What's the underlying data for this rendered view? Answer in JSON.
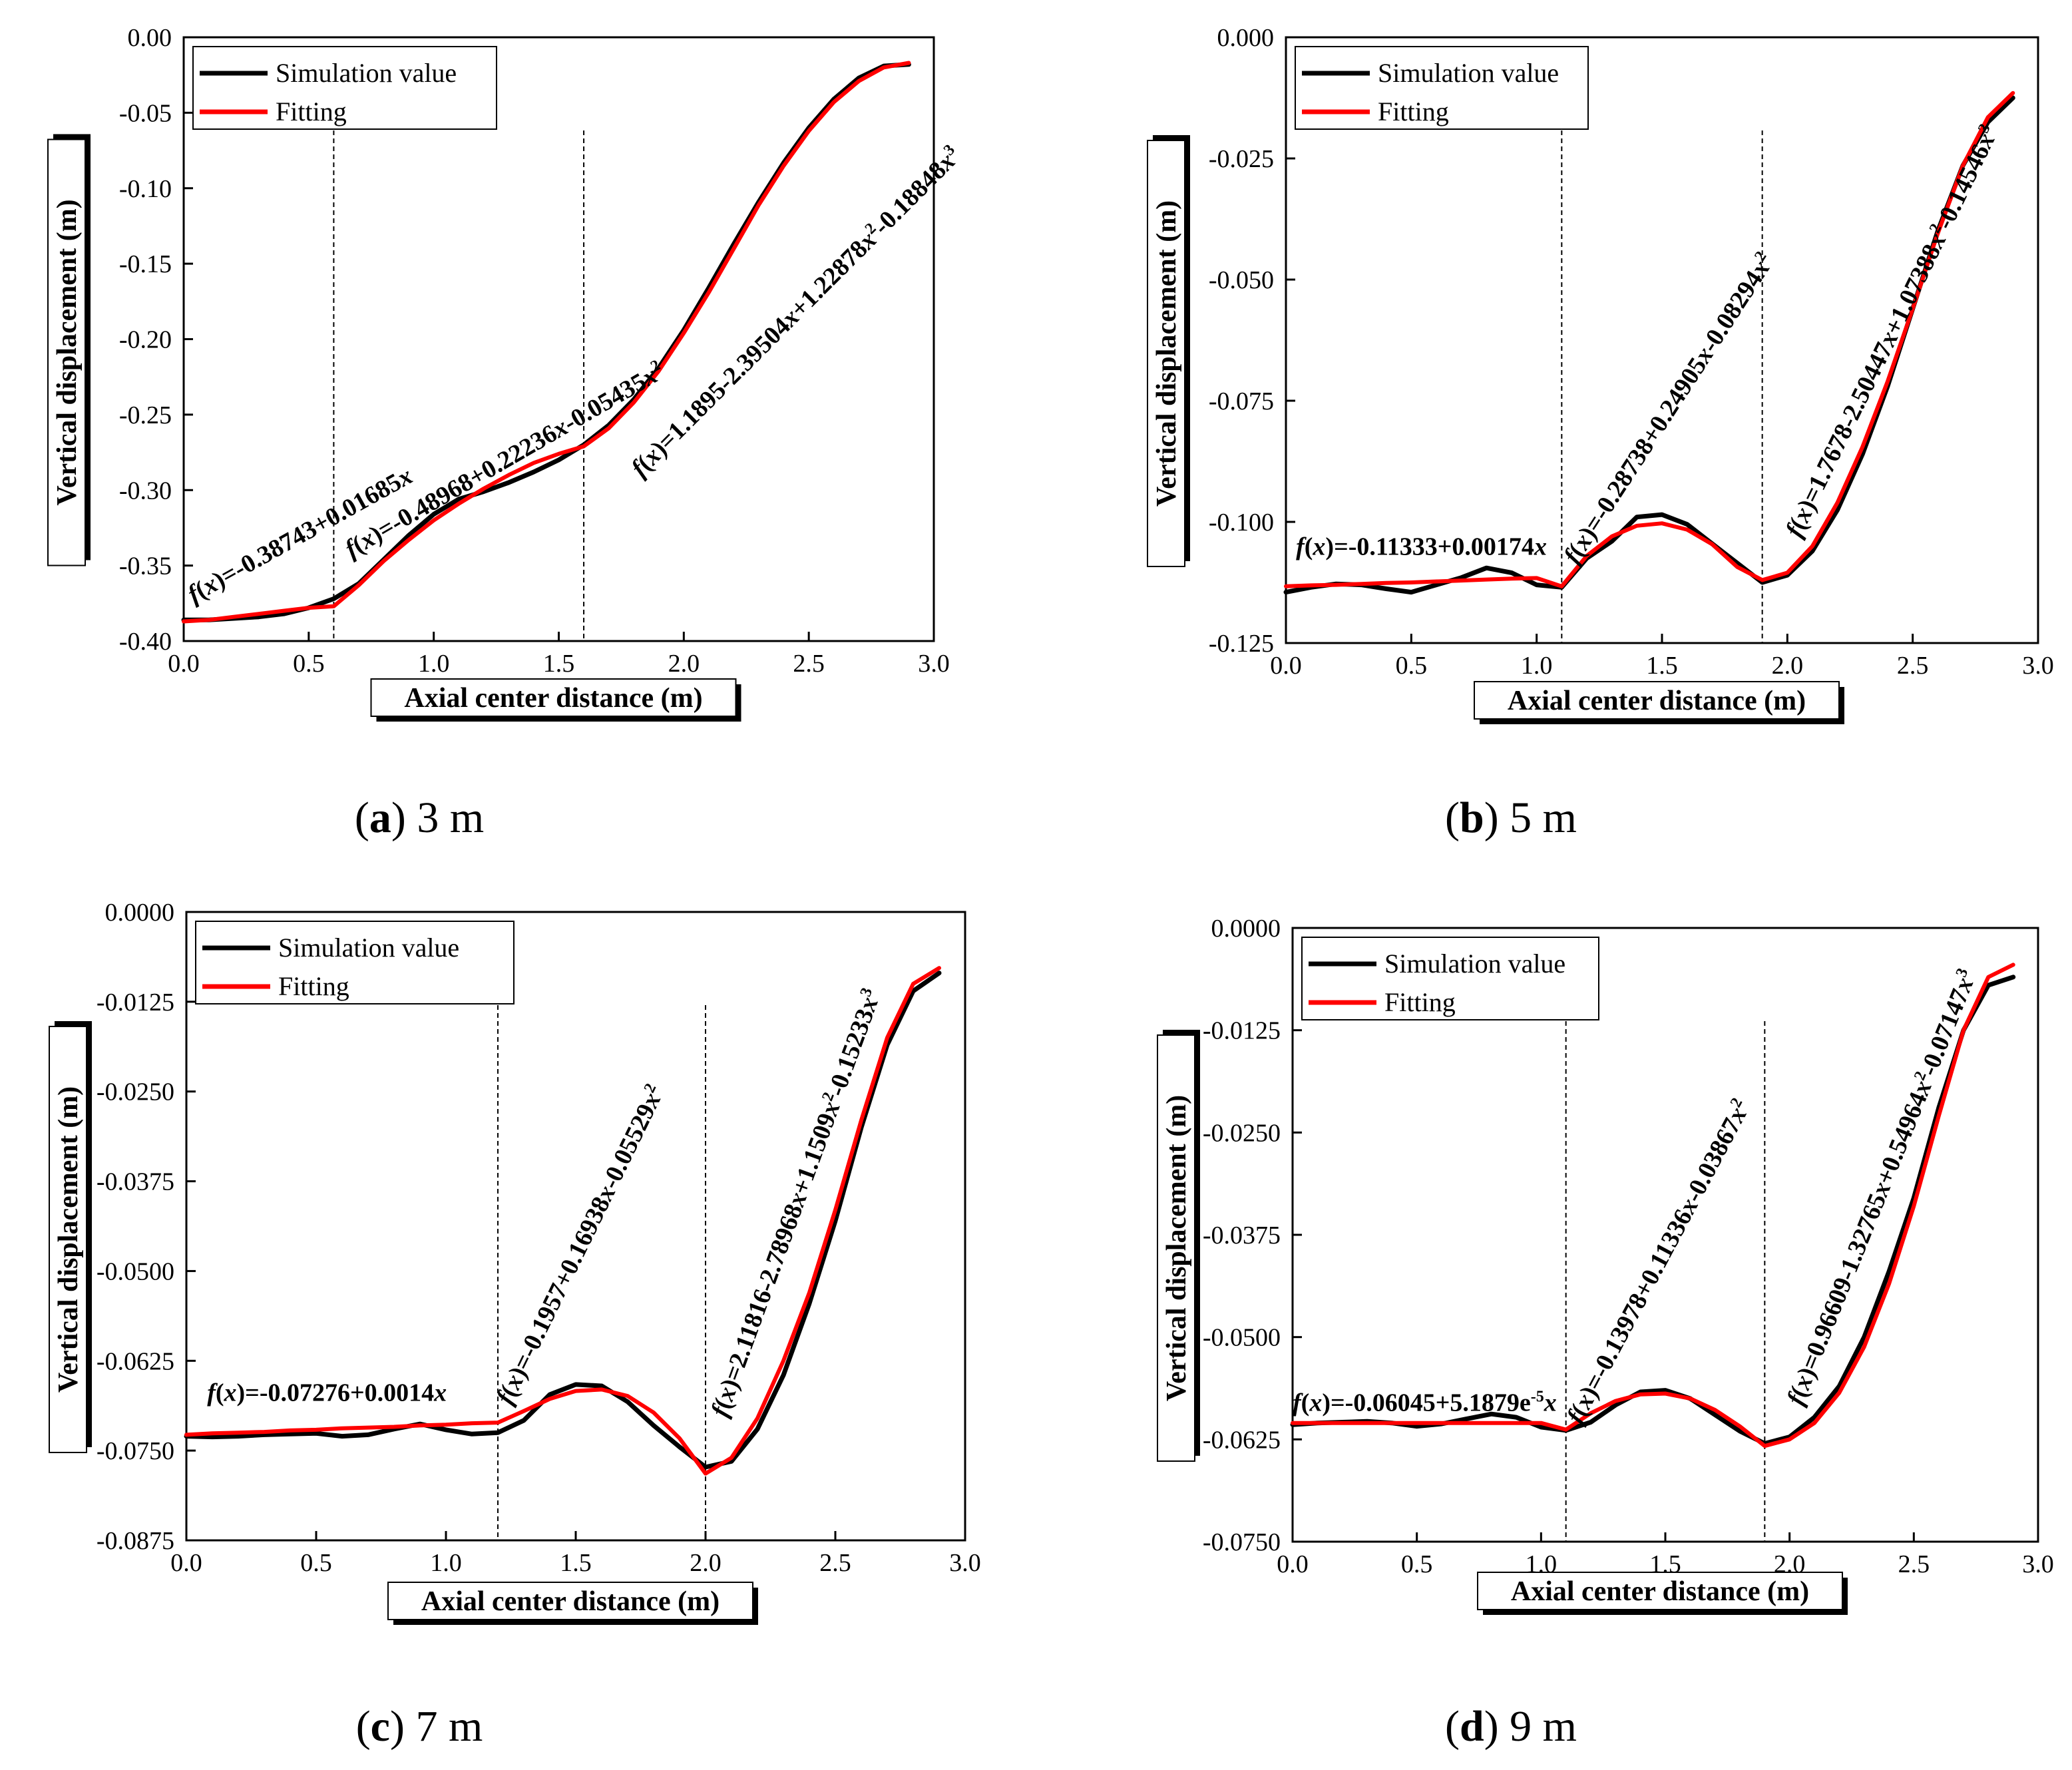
{
  "chart_data": [
    {
      "type": "line",
      "caption": {
        "label": "a",
        "text": " 3 m"
      },
      "xlabel": "Axial center distance (m)",
      "ylabel": "Vertical displacement (m)",
      "xlim": [
        0.0,
        3.0
      ],
      "ylim": [
        -0.4,
        0.0
      ],
      "xticks": [
        "0.0",
        "0.5",
        "1.0",
        "1.5",
        "2.0",
        "2.5",
        "3.0"
      ],
      "yticks": [
        "0.00",
        "-0.05",
        "-0.10",
        "-0.15",
        "-0.20",
        "-0.25",
        "-0.30",
        "-0.35",
        "-0.40"
      ],
      "legend": [
        "Simulation value",
        "Fitting"
      ],
      "dividers": [
        0.6,
        1.6
      ],
      "series": [
        {
          "name": "Simulation value",
          "color": "#000000",
          "x": [
            0,
            0.1,
            0.2,
            0.3,
            0.4,
            0.5,
            0.6,
            0.7,
            0.8,
            0.9,
            1.0,
            1.1,
            1.2,
            1.3,
            1.4,
            1.5,
            1.6,
            1.7,
            1.8,
            1.9,
            2.0,
            2.1,
            2.2,
            2.3,
            2.4,
            2.5,
            2.6,
            2.7,
            2.8,
            2.9
          ],
          "y": [
            -0.386,
            -0.386,
            -0.385,
            -0.384,
            -0.382,
            -0.378,
            -0.372,
            -0.362,
            -0.346,
            -0.33,
            -0.316,
            -0.306,
            -0.301,
            -0.295,
            -0.288,
            -0.28,
            -0.27,
            -0.257,
            -0.24,
            -0.219,
            -0.194,
            -0.166,
            -0.137,
            -0.109,
            -0.083,
            -0.06,
            -0.041,
            -0.027,
            -0.019,
            -0.018
          ]
        },
        {
          "name": "Fitting",
          "color": "#ff0000",
          "x": [
            0,
            0.1,
            0.2,
            0.3,
            0.4,
            0.5,
            0.6,
            0.7,
            0.8,
            0.9,
            1.0,
            1.1,
            1.2,
            1.3,
            1.4,
            1.5,
            1.6,
            1.7,
            1.8,
            1.9,
            2.0,
            2.1,
            2.2,
            2.3,
            2.4,
            2.5,
            2.6,
            2.7,
            2.8,
            2.9
          ],
          "y": [
            -0.387,
            -0.386,
            -0.384,
            -0.382,
            -0.38,
            -0.378,
            -0.377,
            -0.363,
            -0.347,
            -0.333,
            -0.32,
            -0.309,
            -0.299,
            -0.29,
            -0.282,
            -0.276,
            -0.271,
            -0.259,
            -0.242,
            -0.221,
            -0.196,
            -0.169,
            -0.14,
            -0.111,
            -0.085,
            -0.062,
            -0.043,
            -0.029,
            -0.02,
            -0.017
          ]
        }
      ],
      "equations": [
        {
          "prefix": "f",
          "open": "(",
          "var": "x",
          "close": ")",
          "body": "=-0.38743+0.01685",
          "tail": "x",
          "x": 0.04,
          "y": -0.375,
          "angle": -29
        },
        {
          "prefix": "f",
          "open": "(",
          "var": "x",
          "close": ")",
          "body": "=-0.48968+0.22236",
          "mid": "x",
          "body2": "-0.05435",
          "pow": "x",
          "exp": "2",
          "x": 0.67,
          "y": -0.345,
          "angle": -30
        },
        {
          "prefix": "f",
          "open": "(",
          "var": "x",
          "close": ")",
          "body": "=1.1895-2.39504",
          "mid": "x",
          "body2": "+1.22878",
          "pow": "x",
          "exp": "2",
          "body3": "-0.18848",
          "pow2": "x",
          "exp2": "3",
          "x": 1.83,
          "y": -0.292,
          "angle": -45
        }
      ]
    },
    {
      "type": "line",
      "caption": {
        "label": "b",
        "text": " 5 m"
      },
      "xlabel": "Axial center distance (m)",
      "ylabel": "Vertical displacement (m)",
      "xlim": [
        0.0,
        3.0
      ],
      "ylim": [
        -0.125,
        0.0
      ],
      "xticks": [
        "0.0",
        "0.5",
        "1.0",
        "1.5",
        "2.0",
        "2.5",
        "3.0"
      ],
      "yticks": [
        "0.000",
        "-0.025",
        "-0.050",
        "-0.075",
        "-0.100",
        "-0.125"
      ],
      "legend": [
        "Simulation value",
        "Fitting"
      ],
      "dividers": [
        1.1,
        1.9
      ],
      "series": [
        {
          "name": "Simulation value",
          "color": "#000000",
          "x": [
            0,
            0.1,
            0.2,
            0.3,
            0.4,
            0.5,
            0.6,
            0.7,
            0.8,
            0.9,
            1.0,
            1.1,
            1.2,
            1.3,
            1.4,
            1.5,
            1.6,
            1.7,
            1.8,
            1.9,
            2.0,
            2.1,
            2.2,
            2.3,
            2.4,
            2.5,
            2.6,
            2.7,
            2.8,
            2.9
          ],
          "y": [
            -0.1145,
            -0.1135,
            -0.1128,
            -0.113,
            -0.1138,
            -0.1145,
            -0.113,
            -0.1115,
            -0.1095,
            -0.1105,
            -0.113,
            -0.1135,
            -0.1075,
            -0.104,
            -0.099,
            -0.0985,
            -0.1005,
            -0.1045,
            -0.1085,
            -0.1125,
            -0.111,
            -0.106,
            -0.0975,
            -0.086,
            -0.072,
            -0.056,
            -0.04,
            -0.0265,
            -0.0175,
            -0.0125
          ]
        },
        {
          "name": "Fitting",
          "color": "#ff0000",
          "x": [
            0,
            0.1,
            0.2,
            0.3,
            0.4,
            0.5,
            0.6,
            0.7,
            0.8,
            0.9,
            1.0,
            1.1,
            1.2,
            1.3,
            1.4,
            1.5,
            1.6,
            1.7,
            1.8,
            1.9,
            2.0,
            2.1,
            2.2,
            2.3,
            2.4,
            2.5,
            2.6,
            2.7,
            2.8,
            2.9
          ],
          "y": [
            -0.1133,
            -0.1131,
            -0.113,
            -0.1128,
            -0.1126,
            -0.1125,
            -0.1123,
            -0.1121,
            -0.1119,
            -0.1117,
            -0.1116,
            -0.1133,
            -0.107,
            -0.103,
            -0.1008,
            -0.1003,
            -0.1016,
            -0.1046,
            -0.1093,
            -0.112,
            -0.1105,
            -0.105,
            -0.096,
            -0.0845,
            -0.071,
            -0.056,
            -0.0405,
            -0.0265,
            -0.0165,
            -0.0115
          ]
        }
      ],
      "equations": [
        {
          "prefix": "f",
          "open": "(",
          "var": "x",
          "close": ")",
          "body": "=-0.11333+0.00174",
          "tail": "x",
          "x": 0.04,
          "y": -0.1068,
          "angle": 0
        },
        {
          "prefix": "f",
          "open": "(",
          "var": "x",
          "close": ")",
          "body": "=-0.28738+0.24905",
          "mid": "x",
          "body2": "-0.08294",
          "pow": "x",
          "exp": "2",
          "x": 1.16,
          "y": -0.109,
          "angle": -57
        },
        {
          "prefix": "f",
          "open": "(",
          "var": "x",
          "close": ")",
          "body": "=1.7678-2.50447",
          "mid": "x",
          "body2": "+1.07388",
          "pow": "x",
          "exp": "2",
          "body3": "-0.14546",
          "pow2": "x",
          "exp2": "3",
          "x": 2.05,
          "y": -0.1035,
          "angle": -64
        }
      ]
    },
    {
      "type": "line",
      "caption": {
        "label": "c",
        "text": " 7 m"
      },
      "xlabel": "Axial center distance (m)",
      "ylabel": "Vertical displacement (m)",
      "xlim": [
        0.0,
        3.0
      ],
      "ylim": [
        -0.0875,
        0.0
      ],
      "xticks": [
        "0.0",
        "0.5",
        "1.0",
        "1.5",
        "2.0",
        "2.5",
        "3.0"
      ],
      "yticks": [
        "0.0000",
        "-0.0125",
        "-0.0250",
        "-0.0375",
        "-0.0500",
        "-0.0625",
        "-0.0750",
        "-0.0875"
      ],
      "legend": [
        "Simulation value",
        "Fitting"
      ],
      "dividers": [
        1.2,
        2.0
      ],
      "series": [
        {
          "name": "Simulation value",
          "color": "#000000",
          "x": [
            0,
            0.1,
            0.2,
            0.3,
            0.4,
            0.5,
            0.6,
            0.7,
            0.8,
            0.9,
            1.0,
            1.1,
            1.2,
            1.3,
            1.4,
            1.5,
            1.6,
            1.7,
            1.8,
            1.9,
            2.0,
            2.1,
            2.2,
            2.3,
            2.4,
            2.5,
            2.6,
            2.7,
            2.8,
            2.9
          ],
          "y": [
            -0.073,
            -0.0731,
            -0.073,
            -0.0728,
            -0.0727,
            -0.0726,
            -0.073,
            -0.0728,
            -0.072,
            -0.0713,
            -0.0721,
            -0.0727,
            -0.0725,
            -0.0708,
            -0.0672,
            -0.0658,
            -0.066,
            -0.0682,
            -0.0715,
            -0.0745,
            -0.0773,
            -0.0765,
            -0.072,
            -0.0645,
            -0.0545,
            -0.043,
            -0.03,
            -0.0185,
            -0.011,
            -0.0085
          ]
        },
        {
          "name": "Fitting",
          "color": "#ff0000",
          "x": [
            0,
            0.1,
            0.2,
            0.3,
            0.4,
            0.5,
            0.6,
            0.7,
            0.8,
            0.9,
            1.0,
            1.1,
            1.2,
            1.3,
            1.4,
            1.5,
            1.6,
            1.7,
            1.8,
            1.9,
            2.0,
            2.1,
            2.2,
            2.3,
            2.4,
            2.5,
            2.6,
            2.7,
            2.8,
            2.9
          ],
          "y": [
            -0.0728,
            -0.0726,
            -0.0725,
            -0.0724,
            -0.0722,
            -0.0721,
            -0.0719,
            -0.0718,
            -0.0717,
            -0.0715,
            -0.0714,
            -0.0712,
            -0.0711,
            -0.0695,
            -0.0678,
            -0.0667,
            -0.0665,
            -0.0674,
            -0.0697,
            -0.0733,
            -0.0782,
            -0.076,
            -0.0705,
            -0.0625,
            -0.053,
            -0.0415,
            -0.029,
            -0.0175,
            -0.01,
            -0.0078
          ]
        }
      ],
      "equations": [
        {
          "prefix": "f",
          "open": "(",
          "var": "x",
          "close": ")",
          "body": "=-0.07276+0.0014",
          "tail": "x",
          "x": 0.08,
          "y": -0.0681,
          "angle": 0
        },
        {
          "prefix": "f",
          "open": "(",
          "var": "x",
          "close": ")",
          "body": "=-0.1957+0.16938",
          "mid": "x",
          "body2": "-0.05529",
          "pow": "x",
          "exp": "2",
          "x": 1.25,
          "y": -0.0688,
          "angle": -64
        },
        {
          "prefix": "f",
          "open": "(",
          "var": "x",
          "close": ")",
          "body": "=2.11816-2.78968",
          "mid": "x",
          "body2": "+1.1509",
          "pow": "x",
          "exp": "2",
          "body3": "-0.15233",
          "pow2": "x",
          "exp2": "3",
          "x": 2.08,
          "y": -0.0705,
          "angle": -70
        }
      ]
    },
    {
      "type": "line",
      "caption": {
        "label": "d",
        "text": " 9 m"
      },
      "xlabel": "Axial center distance (m)",
      "ylabel": "Vertical displacement (m)",
      "xlim": [
        0.0,
        3.0
      ],
      "ylim": [
        -0.075,
        0.0
      ],
      "xticks": [
        "0.0",
        "0.5",
        "1.0",
        "1.5",
        "2.0",
        "2.5",
        "3.0"
      ],
      "yticks": [
        "0.0000",
        "-0.0125",
        "-0.0250",
        "-0.0375",
        "-0.0500",
        "-0.0625",
        "-0.0750"
      ],
      "legend": [
        "Simulation value",
        "Fitting"
      ],
      "dividers": [
        1.1,
        1.9
      ],
      "series": [
        {
          "name": "Simulation value",
          "color": "#000000",
          "x": [
            0,
            0.1,
            0.2,
            0.3,
            0.4,
            0.5,
            0.6,
            0.7,
            0.8,
            0.9,
            1.0,
            1.1,
            1.2,
            1.3,
            1.4,
            1.5,
            1.6,
            1.7,
            1.8,
            1.9,
            2.0,
            2.1,
            2.2,
            2.3,
            2.4,
            2.5,
            2.6,
            2.7,
            2.8,
            2.9
          ],
          "y": [
            -0.0607,
            -0.0605,
            -0.0604,
            -0.0603,
            -0.0605,
            -0.0609,
            -0.0606,
            -0.06,
            -0.0594,
            -0.0598,
            -0.061,
            -0.0614,
            -0.0604,
            -0.0583,
            -0.0567,
            -0.0565,
            -0.0575,
            -0.0595,
            -0.0615,
            -0.063,
            -0.0622,
            -0.0598,
            -0.056,
            -0.05,
            -0.042,
            -0.033,
            -0.022,
            -0.0125,
            -0.007,
            -0.006
          ]
        },
        {
          "name": "Fitting",
          "color": "#ff0000",
          "x": [
            0,
            0.1,
            0.2,
            0.3,
            0.4,
            0.5,
            0.6,
            0.7,
            0.8,
            0.9,
            1.0,
            1.1,
            1.2,
            1.3,
            1.4,
            1.5,
            1.6,
            1.7,
            1.8,
            1.9,
            2.0,
            2.1,
            2.2,
            2.3,
            2.4,
            2.5,
            2.6,
            2.7,
            2.8,
            2.9
          ],
          "y": [
            -0.0605,
            -0.0605,
            -0.0605,
            -0.0605,
            -0.0605,
            -0.0605,
            -0.0605,
            -0.0605,
            -0.0605,
            -0.0605,
            -0.0605,
            -0.0613,
            -0.0593,
            -0.0578,
            -0.057,
            -0.0569,
            -0.0575,
            -0.0589,
            -0.0609,
            -0.0633,
            -0.0625,
            -0.0605,
            -0.0568,
            -0.0512,
            -0.0435,
            -0.034,
            -0.023,
            -0.0125,
            -0.006,
            -0.0045
          ]
        }
      ],
      "equations": [
        {
          "prefix": "f",
          "open": "(",
          "var": "x",
          "close": ")",
          "body": "=-0.06045+5.1879e",
          "sup": "-5",
          "tail": "x",
          "x": 0.0,
          "y": -0.059,
          "angle": 0
        },
        {
          "prefix": "f",
          "open": "(",
          "var": "x",
          "close": ")",
          "body": "=-0.13978+0.11336",
          "mid": "x",
          "body2": "-0.03867",
          "pow": "x",
          "exp": "2",
          "x": 1.16,
          "y": -0.0608,
          "angle": -62
        },
        {
          "prefix": "f",
          "open": "(",
          "var": "x",
          "close": ")",
          "body": "=0.96609-1.32765",
          "mid": "x",
          "body2": "+0.54964",
          "pow": "x",
          "exp": "2",
          "body3": "-0.07147",
          "pow2": "x",
          "exp2": "3",
          "x": 2.05,
          "y": -0.0585,
          "angle": -68
        }
      ]
    }
  ]
}
